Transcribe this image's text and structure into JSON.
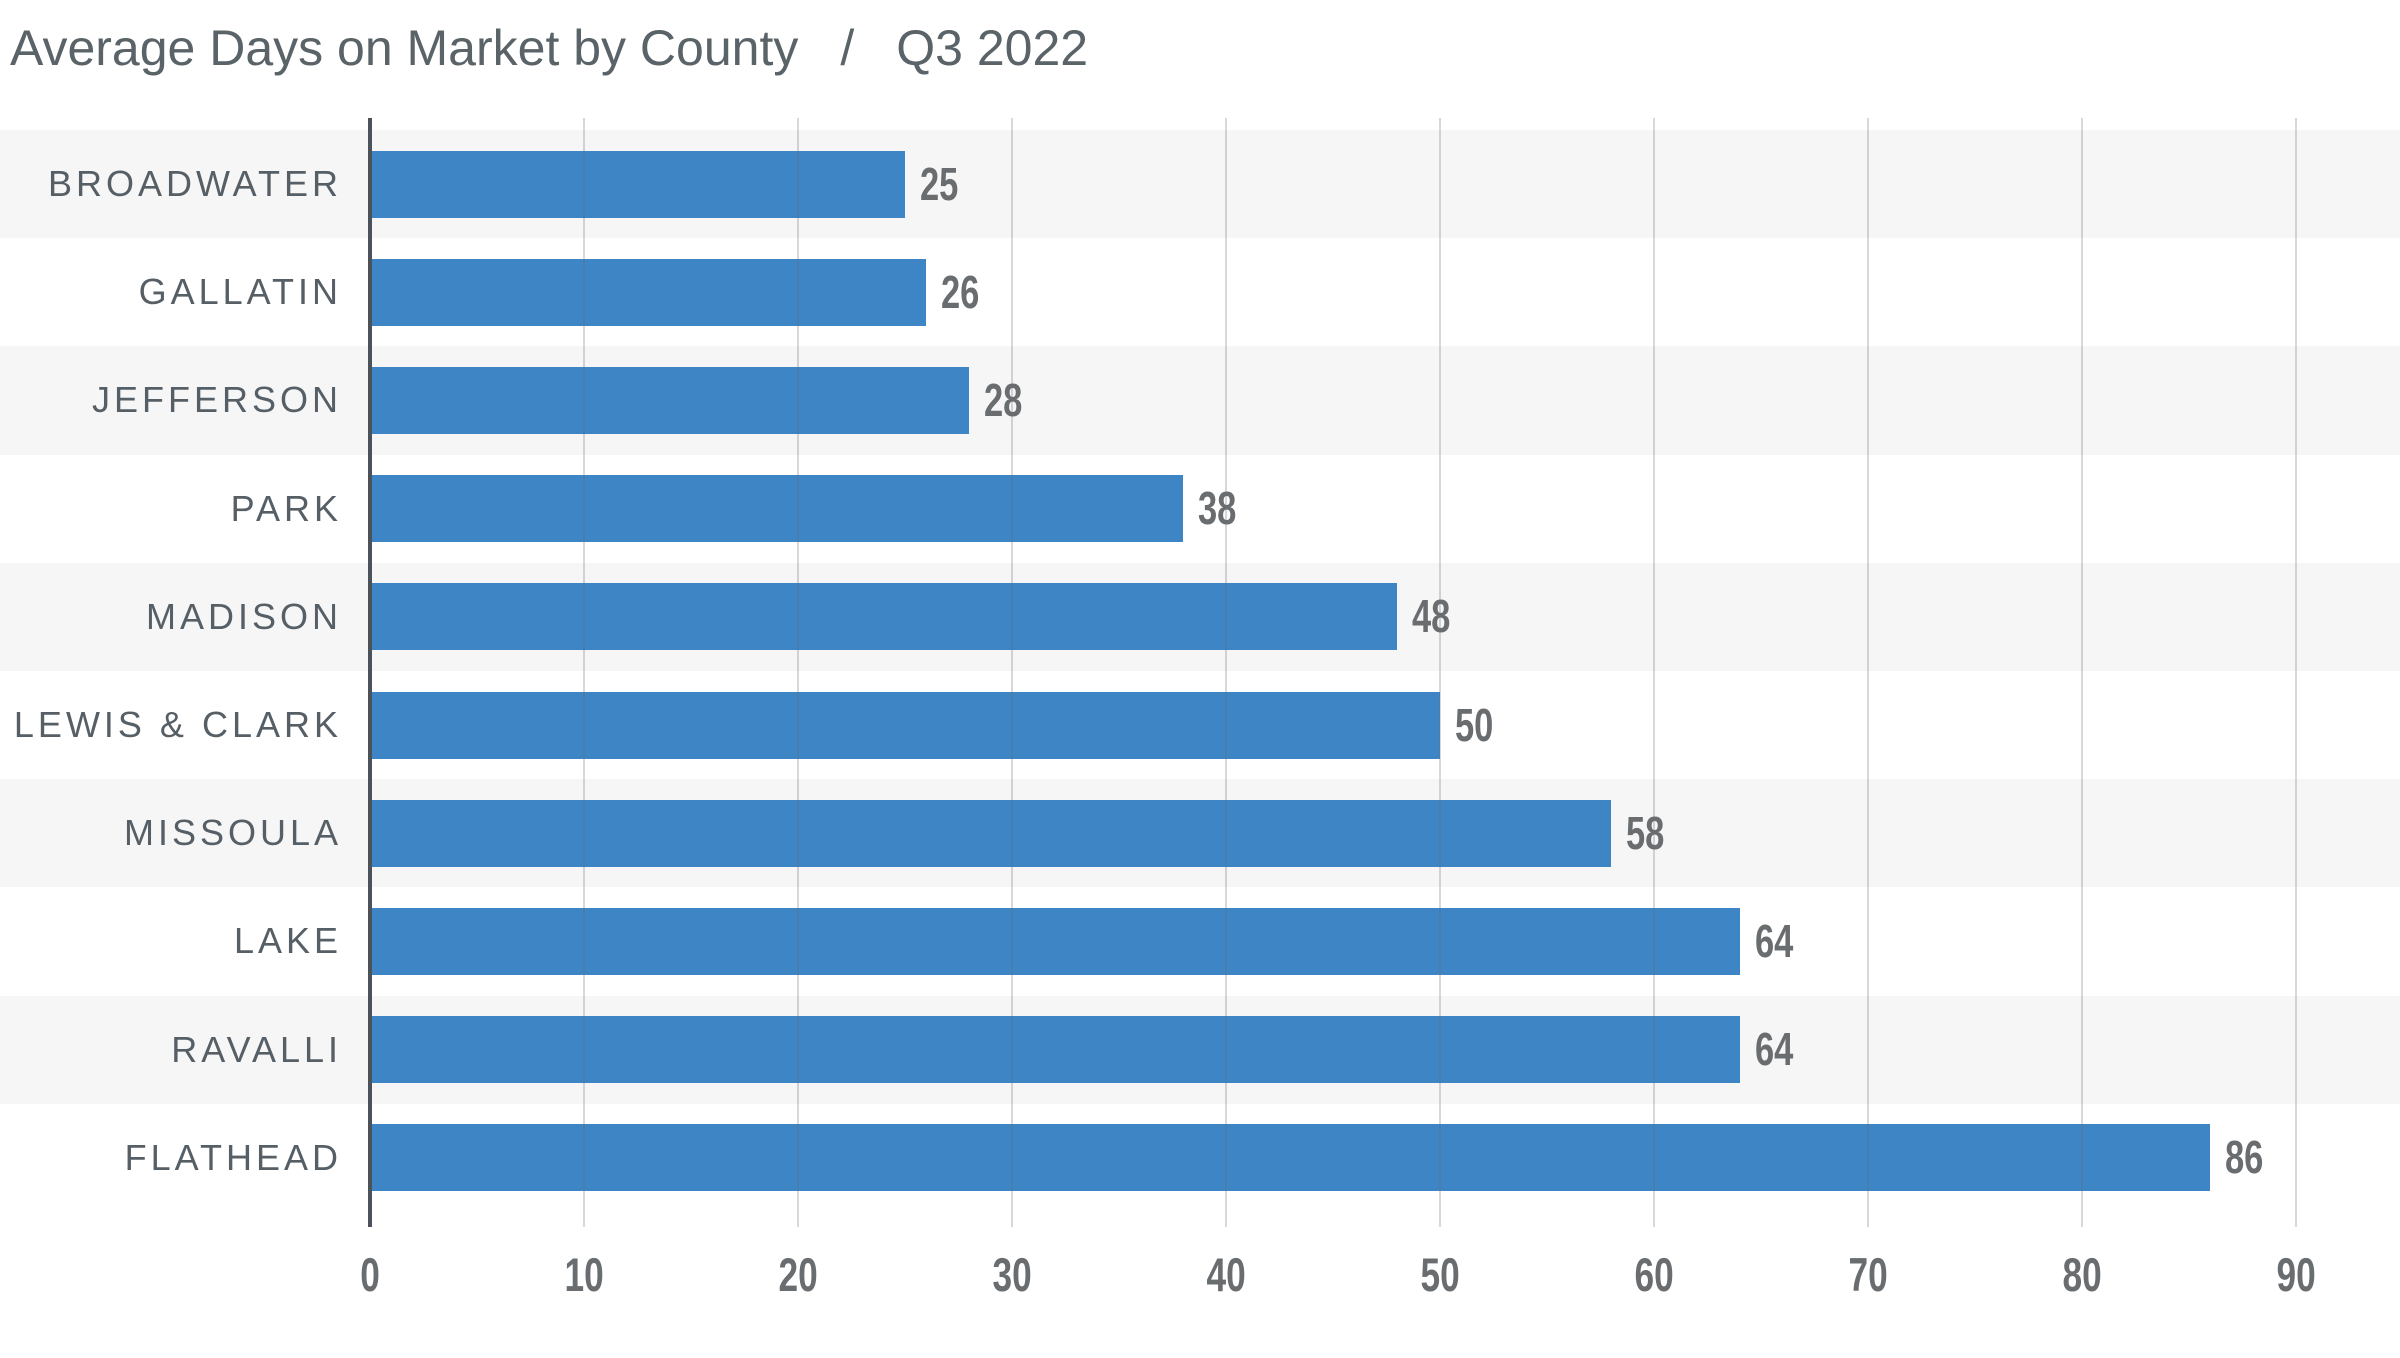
{
  "title": {
    "main": "Average Days on Market by County",
    "separator": "/",
    "period": "Q3 2022"
  },
  "chart_data": {
    "type": "bar",
    "orientation": "horizontal",
    "title": "Average Days on Market by County / Q3 2022",
    "categories": [
      "BROADWATER",
      "GALLATIN",
      "JEFFERSON",
      "PARK",
      "MADISON",
      "LEWIS & CLARK",
      "MISSOULA",
      "LAKE",
      "RAVALLI",
      "FLATHEAD"
    ],
    "values": [
      25,
      26,
      28,
      38,
      48,
      50,
      58,
      64,
      64,
      86
    ],
    "value_labels": [
      "25",
      "26",
      "28",
      "38",
      "48",
      "50",
      "58",
      "64",
      "64",
      "86"
    ],
    "x_ticks": [
      0,
      10,
      20,
      30,
      40,
      50,
      60,
      70,
      80,
      90
    ],
    "xlim": [
      0,
      90
    ],
    "xlabel": "",
    "ylabel": "",
    "grid": true,
    "legend": null,
    "row_striping": "alternating, first row shaded"
  },
  "colors": {
    "bar": "#3d85c5",
    "band_shade": "#f6f6f7",
    "gridline": "rgba(100,106,112,0.26)",
    "axis_line": "#4b525a",
    "county_label": "#565f66",
    "number_label": "#6a6d70",
    "title": "#5a6368",
    "background": "#ffffff"
  }
}
